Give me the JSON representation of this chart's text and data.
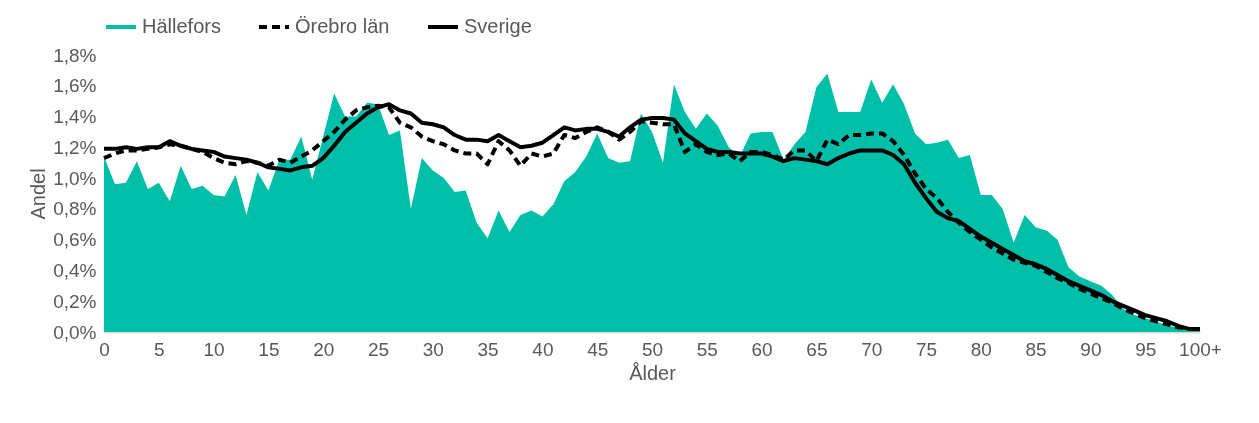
{
  "chart_data": {
    "type": "area",
    "xlabel": "Ålder",
    "ylabel": "Andel",
    "legend": "top",
    "grid": false,
    "categories": [
      "0",
      null,
      null,
      null,
      null,
      "5",
      null,
      null,
      null,
      null,
      "10",
      null,
      null,
      null,
      null,
      "15",
      null,
      null,
      null,
      null,
      "20",
      null,
      null,
      null,
      null,
      "25",
      null,
      null,
      null,
      null,
      "30",
      null,
      null,
      null,
      null,
      "35",
      null,
      null,
      null,
      null,
      "40",
      null,
      null,
      null,
      null,
      "45",
      null,
      null,
      null,
      null,
      "50",
      null,
      null,
      null,
      null,
      "55",
      null,
      null,
      null,
      null,
      "60",
      null,
      null,
      null,
      null,
      "65",
      null,
      null,
      null,
      null,
      "70",
      null,
      null,
      null,
      null,
      "75",
      null,
      null,
      null,
      null,
      "80",
      null,
      null,
      null,
      null,
      "85",
      null,
      null,
      null,
      null,
      "90",
      null,
      null,
      null,
      null,
      "95",
      null,
      null,
      null,
      null,
      "100+"
    ],
    "ylim": [
      0,
      1.8
    ],
    "yticks": [
      {
        "value": 0,
        "label": "0,0%"
      },
      {
        "value": 0.2,
        "label": "0,2%"
      },
      {
        "value": 0.4,
        "label": "0,4%"
      },
      {
        "value": 0.6,
        "label": "0,6%"
      },
      {
        "value": 0.8,
        "label": "0,8%"
      },
      {
        "value": 1,
        "label": "1,0%"
      },
      {
        "value": 1.2,
        "label": "1,2%"
      },
      {
        "value": 1.4,
        "label": "1,4%"
      },
      {
        "value": 1.6,
        "label": "1,6%"
      },
      {
        "value": 1.8,
        "label": "1,8%"
      }
    ],
    "series": [
      {
        "name": "Hällefors",
        "color": "#00bfa9",
        "values": [
          1.14,
          0.96,
          0.97,
          1.11,
          0.93,
          0.97,
          0.85,
          1.08,
          0.93,
          0.95,
          0.89,
          0.88,
          1.02,
          0.76,
          1.04,
          0.92,
          1.12,
          1.12,
          1.27,
          0.99,
          1.27,
          1.55,
          1.4,
          1.4,
          1.49,
          1.48,
          1.28,
          1.31,
          0.8,
          1.13,
          1.05,
          1.0,
          0.91,
          0.92,
          0.71,
          0.61,
          0.79,
          0.65,
          0.76,
          0.79,
          0.75,
          0.83,
          0.98,
          1.04,
          1.14,
          1.29,
          1.13,
          1.1,
          1.11,
          1.42,
          1.3,
          1.1,
          1.61,
          1.43,
          1.32,
          1.42,
          1.34,
          1.2,
          1.14,
          1.29,
          1.3,
          1.3,
          1.12,
          1.22,
          1.3,
          1.59,
          1.68,
          1.43,
          1.43,
          1.43,
          1.64,
          1.49,
          1.61,
          1.48,
          1.29,
          1.22,
          1.23,
          1.25,
          1.13,
          1.15,
          0.89,
          0.89,
          0.8,
          0.58,
          0.76,
          0.68,
          0.66,
          0.6,
          0.42,
          0.36,
          0.33,
          0.3,
          0.24,
          0.15,
          0.11,
          0.09,
          0.07,
          0.04,
          0.03,
          0.02,
          0.02
        ]
      },
      {
        "name": "Örebro län",
        "type": "line",
        "line_style": "dashed",
        "color": "#000000",
        "values": [
          1.13,
          1.16,
          1.18,
          1.18,
          1.19,
          1.2,
          1.22,
          1.21,
          1.19,
          1.17,
          1.13,
          1.1,
          1.09,
          1.11,
          1.1,
          1.08,
          1.12,
          1.1,
          1.14,
          1.18,
          1.24,
          1.3,
          1.38,
          1.44,
          1.46,
          1.47,
          1.46,
          1.36,
          1.33,
          1.27,
          1.24,
          1.22,
          1.18,
          1.16,
          1.16,
          1.09,
          1.24,
          1.18,
          1.08,
          1.16,
          1.14,
          1.16,
          1.28,
          1.26,
          1.3,
          1.33,
          1.3,
          1.25,
          1.3,
          1.37,
          1.36,
          1.35,
          1.35,
          1.17,
          1.22,
          1.17,
          1.15,
          1.16,
          1.11,
          1.17,
          1.17,
          1.15,
          1.12,
          1.18,
          1.18,
          1.11,
          1.25,
          1.22,
          1.28,
          1.28,
          1.29,
          1.29,
          1.24,
          1.15,
          1.03,
          0.93,
          0.87,
          0.78,
          0.71,
          0.65,
          0.6,
          0.55,
          0.51,
          0.47,
          0.45,
          0.43,
          0.39,
          0.35,
          0.32,
          0.28,
          0.25,
          0.22,
          0.19,
          0.15,
          0.12,
          0.09,
          0.07,
          0.05,
          0.03,
          0.02,
          0.02
        ]
      },
      {
        "name": "Sverige",
        "type": "line",
        "line_style": "solid",
        "color": "#000000",
        "values": [
          1.19,
          1.19,
          1.2,
          1.19,
          1.2,
          1.2,
          1.24,
          1.21,
          1.19,
          1.18,
          1.17,
          1.14,
          1.13,
          1.12,
          1.1,
          1.07,
          1.06,
          1.05,
          1.07,
          1.08,
          1.13,
          1.21,
          1.3,
          1.36,
          1.42,
          1.46,
          1.48,
          1.44,
          1.42,
          1.36,
          1.35,
          1.33,
          1.28,
          1.25,
          1.25,
          1.24,
          1.28,
          1.24,
          1.2,
          1.21,
          1.23,
          1.28,
          1.33,
          1.31,
          1.32,
          1.32,
          1.3,
          1.27,
          1.33,
          1.38,
          1.39,
          1.39,
          1.38,
          1.29,
          1.24,
          1.19,
          1.17,
          1.17,
          1.16,
          1.16,
          1.16,
          1.14,
          1.11,
          1.13,
          1.12,
          1.11,
          1.09,
          1.13,
          1.16,
          1.18,
          1.18,
          1.18,
          1.15,
          1.09,
          0.97,
          0.87,
          0.78,
          0.74,
          0.72,
          0.67,
          0.62,
          0.58,
          0.54,
          0.5,
          0.46,
          0.44,
          0.41,
          0.37,
          0.33,
          0.3,
          0.27,
          0.24,
          0.2,
          0.17,
          0.14,
          0.11,
          0.09,
          0.07,
          0.04,
          0.02,
          0.02
        ]
      }
    ]
  }
}
